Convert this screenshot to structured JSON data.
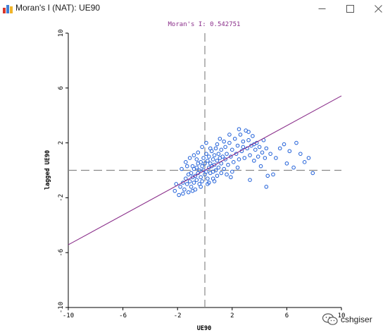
{
  "window": {
    "title": "Moran's I (NAT): UE90",
    "icon": "chart-icon",
    "controls": [
      "minimize-icon",
      "maximize-icon",
      "close-icon"
    ]
  },
  "chart_data": {
    "type": "scatter",
    "title": "Moran's I: 0.542751",
    "xlabel": "UE90",
    "ylabel": "lagged UE90",
    "xlim": [
      -10,
      10
    ],
    "ylim": [
      -10,
      10
    ],
    "xticks": [
      "-10",
      "-6",
      "-2",
      "2",
      "6",
      "10"
    ],
    "yticks": [
      "-10",
      "-6",
      "-2",
      "2",
      "6",
      "10"
    ],
    "xtick_values": [
      -10,
      -6,
      -2,
      2,
      6,
      10
    ],
    "ytick_values": [
      -10,
      -6,
      -2,
      2,
      6,
      10
    ],
    "regression_slope": 0.542751,
    "reference_lines": {
      "x": 0,
      "y": 0,
      "style": "dashed"
    },
    "point_color": "#1f5fd8",
    "line_color": "#8a2e8a",
    "ref_line_color": "#888888",
    "grid": false,
    "points": [
      [
        -1.8,
        -1.2
      ],
      [
        -1.6,
        -0.9
      ],
      [
        -1.5,
        -1.4
      ],
      [
        -1.4,
        -0.6
      ],
      [
        -1.3,
        -1.0
      ],
      [
        -1.2,
        -0.3
      ],
      [
        -1.2,
        -1.6
      ],
      [
        -1.1,
        -0.8
      ],
      [
        -1.0,
        -0.2
      ],
      [
        -1.0,
        -1.2
      ],
      [
        -0.9,
        -0.5
      ],
      [
        -0.9,
        0.3
      ],
      [
        -0.8,
        -0.9
      ],
      [
        -0.8,
        0.1
      ],
      [
        -0.7,
        -0.4
      ],
      [
        -0.7,
        -1.4
      ],
      [
        -0.6,
        0.2
      ],
      [
        -0.6,
        -0.7
      ],
      [
        -0.5,
        0.5
      ],
      [
        -0.5,
        -0.2
      ],
      [
        -0.4,
        -1.0
      ],
      [
        -0.4,
        0.0
      ],
      [
        -0.3,
        0.6
      ],
      [
        -0.3,
        -0.5
      ],
      [
        -0.2,
        0.3
      ],
      [
        -0.2,
        -0.8
      ],
      [
        -0.1,
        0.9
      ],
      [
        -0.1,
        0.0
      ],
      [
        0.0,
        -0.3
      ],
      [
        0.0,
        0.5
      ],
      [
        0.1,
        1.2
      ],
      [
        0.1,
        -0.1
      ],
      [
        0.2,
        0.7
      ],
      [
        0.2,
        -0.6
      ],
      [
        0.3,
        0.2
      ],
      [
        0.3,
        1.0
      ],
      [
        0.4,
        0.5
      ],
      [
        0.4,
        -0.2
      ],
      [
        0.5,
        1.4
      ],
      [
        0.5,
        0.3
      ],
      [
        0.6,
        0.8
      ],
      [
        0.6,
        -0.1
      ],
      [
        0.7,
        1.1
      ],
      [
        0.7,
        0.4
      ],
      [
        0.8,
        0.0
      ],
      [
        0.8,
        1.6
      ],
      [
        0.9,
        0.7
      ],
      [
        1.0,
        1.2
      ],
      [
        1.0,
        0.2
      ],
      [
        1.1,
        0.9
      ],
      [
        1.2,
        1.5
      ],
      [
        1.2,
        0.5
      ],
      [
        1.3,
        1.0
      ],
      [
        1.4,
        0.1
      ],
      [
        1.5,
        1.7
      ],
      [
        1.5,
        0.8
      ],
      [
        1.6,
        1.2
      ],
      [
        1.7,
        0.4
      ],
      [
        1.8,
        2.0
      ],
      [
        1.9,
        1.0
      ],
      [
        2.0,
        1.5
      ],
      [
        2.1,
        0.6
      ],
      [
        2.2,
        2.3
      ],
      [
        2.3,
        1.2
      ],
      [
        2.4,
        1.8
      ],
      [
        2.5,
        0.8
      ],
      [
        2.6,
        2.6
      ],
      [
        2.7,
        1.4
      ],
      [
        2.8,
        2.1
      ],
      [
        2.9,
        0.9
      ],
      [
        3.0,
        2.9
      ],
      [
        3.1,
        1.6
      ],
      [
        3.2,
        2.2
      ],
      [
        3.3,
        1.1
      ],
      [
        3.4,
        1.8
      ],
      [
        3.5,
        2.5
      ],
      [
        3.6,
        0.7
      ],
      [
        3.7,
        1.5
      ],
      [
        3.8,
        2.0
      ],
      [
        3.9,
        1.0
      ],
      [
        4.0,
        1.7
      ],
      [
        4.1,
        0.3
      ],
      [
        4.2,
        1.3
      ],
      [
        4.3,
        2.2
      ],
      [
        4.4,
        0.9
      ],
      [
        4.5,
        1.6
      ],
      [
        4.6,
        -0.4
      ],
      [
        4.8,
        1.2
      ],
      [
        5.0,
        -0.3
      ],
      [
        5.2,
        0.9
      ],
      [
        5.5,
        1.6
      ],
      [
        5.8,
        1.9
      ],
      [
        6.0,
        0.5
      ],
      [
        6.2,
        1.4
      ],
      [
        6.5,
        0.2
      ],
      [
        6.7,
        2.0
      ],
      [
        7.0,
        1.2
      ],
      [
        7.3,
        0.6
      ],
      [
        7.6,
        0.9
      ],
      [
        7.9,
        -0.2
      ],
      [
        4.5,
        -1.2
      ],
      [
        3.3,
        -0.7
      ],
      [
        -1.9,
        -1.8
      ],
      [
        -2.1,
        -1.0
      ],
      [
        -1.7,
        0.1
      ],
      [
        -1.4,
        0.6
      ],
      [
        -1.1,
        0.9
      ],
      [
        -0.8,
        1.1
      ],
      [
        -0.5,
        1.3
      ],
      [
        -0.2,
        1.7
      ],
      [
        0.1,
        2.0
      ],
      [
        0.3,
        -0.9
      ],
      [
        0.6,
        -0.6
      ],
      [
        0.9,
        -0.4
      ],
      [
        1.2,
        -0.2
      ],
      [
        1.6,
        -0.3
      ],
      [
        2.0,
        -0.1
      ],
      [
        2.4,
        0.2
      ],
      [
        -2.2,
        -1.5
      ],
      [
        -1.6,
        -1.7
      ],
      [
        -0.9,
        -1.5
      ],
      [
        -0.3,
        -1.2
      ],
      [
        0.2,
        -1.0
      ],
      [
        0.7,
        -0.8
      ],
      [
        1.1,
        2.3
      ],
      [
        1.8,
        2.6
      ],
      [
        2.5,
        3.0
      ],
      [
        3.2,
        2.8
      ],
      [
        0.4,
        1.6
      ],
      [
        0.9,
        1.9
      ],
      [
        1.4,
        2.1
      ],
      [
        -0.6,
        0.8
      ],
      [
        -1.3,
        0.3
      ],
      [
        2.8,
        1.7
      ],
      [
        3.6,
        1.9
      ],
      [
        1.9,
        -0.5
      ]
    ]
  },
  "watermark": {
    "text": "cshgiser",
    "icon": "wechat-icon"
  }
}
